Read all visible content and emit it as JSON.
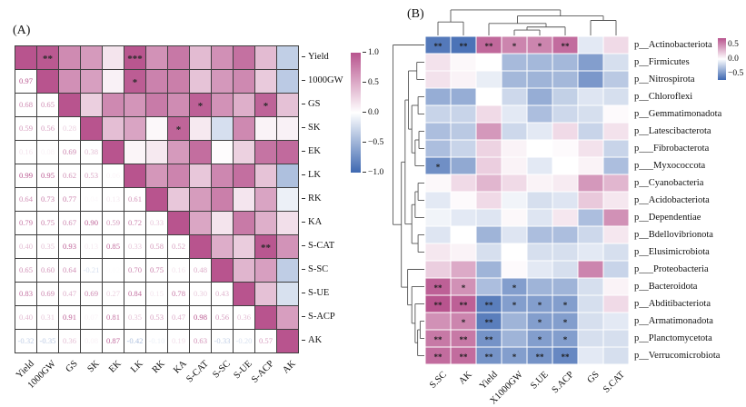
{
  "chart_data": [
    {
      "type": "heatmap",
      "subtype": "correlation-matrix",
      "panel_label": "(A)",
      "labels": [
        "Yield",
        "1000GW",
        "GS",
        "SK",
        "EK",
        "LK",
        "RK",
        "KA",
        "S-CAT",
        "S-SC",
        "S-UE",
        "S-ACP",
        "AK"
      ],
      "lower_triangle": [
        [],
        [
          0.97
        ],
        [
          0.68,
          0.65
        ],
        [
          0.59,
          0.56,
          0.28
        ],
        [
          0.16,
          0.08,
          0.69,
          0.38
        ],
        [
          0.99,
          0.95,
          0.62,
          0.53,
          0.06
        ],
        [
          0.64,
          0.73,
          0.77,
          0.04,
          0.13,
          0.61
        ],
        [
          0.79,
          0.75,
          0.67,
          0.9,
          0.59,
          0.72,
          0.33
        ],
        [
          0.4,
          0.35,
          0.93,
          0.13,
          0.85,
          0.33,
          0.58,
          0.52
        ],
        [
          0.65,
          0.6,
          0.64,
          -0.21,
          0.02,
          0.7,
          0.75,
          0.16,
          0.48
        ],
        [
          0.83,
          0.69,
          0.47,
          0.69,
          0.27,
          0.84,
          0.15,
          0.78,
          0.3,
          0.43
        ],
        [
          0.4,
          0.31,
          0.91,
          0.07,
          0.81,
          0.35,
          0.53,
          0.47,
          0.98,
          0.56,
          0.36
        ],
        [
          -0.32,
          -0.35,
          0.36,
          0.08,
          0.87,
          -0.42,
          -0.1,
          0.19,
          0.63,
          -0.33,
          -0.2,
          0.57
        ]
      ],
      "significance": [
        {
          "pair": [
            "Yield",
            "1000GW"
          ],
          "stars": "**"
        },
        {
          "pair": [
            "Yield",
            "LK"
          ],
          "stars": "***"
        },
        {
          "pair": [
            "1000GW",
            "LK"
          ],
          "stars": "*"
        },
        {
          "pair": [
            "GS",
            "S-CAT"
          ],
          "stars": "*"
        },
        {
          "pair": [
            "GS",
            "S-ACP"
          ],
          "stars": "*"
        },
        {
          "pair": [
            "SK",
            "KA"
          ],
          "stars": "*"
        },
        {
          "pair": [
            "S-CAT",
            "S-ACP"
          ],
          "stars": "**"
        }
      ],
      "colorbar_ticks": [
        "1.0",
        "0.5",
        "0.0",
        "−0.5",
        "−1.0"
      ],
      "colorbar_range": [
        1.0,
        -1.0
      ],
      "colors": {
        "positive": "#b8548e",
        "zero": "#ffffff",
        "negative": "#3e68b1"
      }
    },
    {
      "type": "heatmap",
      "subtype": "clustered-heatmap",
      "panel_label": "(B)",
      "columns": [
        "S.SC",
        "AK",
        "Yield",
        "X1000GW",
        "S.UE",
        "S.ACP",
        "GS",
        "S.CAT"
      ],
      "rows": [
        "p__Actinobacteriota",
        "p__Firmicutes",
        "p__Nitrospirota",
        "p__Chloroflexi",
        "p__Gemmatimonadota",
        "p__Latescibacterota",
        "p___Fibrobacterota",
        "p___Myxococcota",
        "p__Cyanobacteria",
        "p__Acidobacteriota",
        "p__Dependentiae",
        "p__Bdellovibrionota",
        "p__Elusimicrobiota",
        "p___Proteobacteria",
        "p__Bacteroidota",
        "p__Abditibacteriota",
        "p__Armatimonadota",
        "p__Planctomycetota",
        "p__Verrucomicrobiota"
      ],
      "values": [
        [
          -0.62,
          -0.65,
          0.62,
          0.5,
          0.5,
          0.6,
          -0.1,
          0.15
        ],
        [
          0.12,
          0.03,
          0.0,
          -0.32,
          -0.33,
          -0.33,
          -0.45,
          -0.15
        ],
        [
          0.12,
          0.05,
          -0.08,
          -0.33,
          -0.35,
          -0.33,
          -0.48,
          -0.25
        ],
        [
          -0.38,
          -0.38,
          0.0,
          -0.18,
          -0.38,
          -0.22,
          -0.12,
          -0.15
        ],
        [
          -0.2,
          -0.2,
          0.15,
          -0.1,
          -0.3,
          -0.18,
          -0.15,
          0.02
        ],
        [
          -0.3,
          -0.25,
          0.42,
          -0.18,
          -0.1,
          0.15,
          -0.2,
          0.12
        ],
        [
          -0.3,
          -0.2,
          0.18,
          0.05,
          0.0,
          0.02,
          0.12,
          -0.2
        ],
        [
          -0.52,
          -0.4,
          0.2,
          0.05,
          -0.1,
          0.0,
          0.05,
          -0.3
        ],
        [
          0.03,
          0.15,
          0.3,
          0.15,
          0.05,
          0.08,
          0.42,
          0.3
        ],
        [
          -0.1,
          0.02,
          0.15,
          -0.05,
          -0.15,
          -0.12,
          0.22,
          0.1
        ],
        [
          -0.05,
          -0.1,
          -0.12,
          0.03,
          -0.12,
          0.1,
          -0.3,
          0.45
        ],
        [
          -0.12,
          0.0,
          -0.35,
          -0.12,
          -0.3,
          -0.3,
          -0.18,
          0.1
        ],
        [
          0.1,
          0.05,
          -0.15,
          0.0,
          -0.15,
          -0.15,
          -0.1,
          -0.15
        ],
        [
          0.2,
          0.35,
          -0.35,
          0.02,
          -0.1,
          -0.15,
          0.5,
          -0.2
        ],
        [
          0.65,
          0.45,
          -0.3,
          -0.45,
          -0.35,
          -0.35,
          -0.15,
          0.05
        ],
        [
          0.7,
          0.65,
          -0.6,
          -0.45,
          -0.45,
          -0.45,
          -0.15,
          0.15
        ],
        [
          0.45,
          0.5,
          -0.6,
          -0.35,
          -0.45,
          -0.45,
          -0.15,
          -0.1
        ],
        [
          0.55,
          0.55,
          -0.5,
          -0.35,
          -0.45,
          -0.45,
          -0.15,
          -0.15
        ],
        [
          0.6,
          0.6,
          -0.5,
          -0.45,
          -0.5,
          -0.55,
          -0.1,
          -0.15
        ]
      ],
      "stars": [
        [
          "**",
          "**",
          "**",
          "*",
          "*",
          "**",
          "",
          ""
        ],
        [
          "",
          "",
          "",
          "",
          "",
          "",
          "",
          ""
        ],
        [
          "",
          "",
          "",
          "",
          "",
          "",
          "",
          ""
        ],
        [
          "",
          "",
          "",
          "",
          "",
          "",
          "",
          ""
        ],
        [
          "",
          "",
          "",
          "",
          "",
          "",
          "",
          ""
        ],
        [
          "",
          "",
          "",
          "",
          "",
          "",
          "",
          ""
        ],
        [
          "",
          "",
          "",
          "",
          "",
          "",
          "",
          ""
        ],
        [
          "*",
          "",
          "",
          "",
          "",
          "",
          "",
          ""
        ],
        [
          "",
          "",
          "",
          "",
          "",
          "",
          "",
          ""
        ],
        [
          "",
          "",
          "",
          "",
          "",
          "",
          "",
          ""
        ],
        [
          "",
          "",
          "",
          "",
          "",
          "",
          "",
          ""
        ],
        [
          "",
          "",
          "",
          "",
          "",
          "",
          "",
          ""
        ],
        [
          "",
          "",
          "",
          "",
          "",
          "",
          "",
          ""
        ],
        [
          "",
          "",
          "",
          "",
          "",
          "",
          "",
          ""
        ],
        [
          "**",
          "*",
          "",
          "*",
          "",
          "",
          "",
          ""
        ],
        [
          "**",
          "**",
          "**",
          "*",
          "*",
          "*",
          "",
          ""
        ],
        [
          "",
          "*",
          "**",
          "",
          "*",
          "*",
          "",
          ""
        ],
        [
          "**",
          "**",
          "**",
          "",
          "*",
          "*",
          "",
          ""
        ],
        [
          "**",
          "**",
          "**",
          "*",
          "**",
          "**",
          "",
          ""
        ]
      ],
      "colorbar_ticks": [
        "0.5",
        "0.0",
        "−0.5"
      ],
      "colorbar_range": [
        0.7,
        -0.7
      ],
      "col_dendrogram": {
        "h": 0.85,
        "c": [
          {
            "h": 0.45,
            "c": [
              0,
              1
            ]
          },
          {
            "h": 0.65,
            "c": [
              {
                "h": 0.4,
                "c": [
                  2,
                  {
                    "h": 0.28,
                    "c": [
                      {
                        "h": 0.18,
                        "c": [
                          3,
                          4
                        ]
                      },
                      5
                    ]
                  }
                ]
              },
              {
                "h": 0.5,
                "c": [
                  6,
                  7
                ]
              }
            ]
          }
        ]
      },
      "row_dendrogram": {
        "h": 0.75,
        "c": [
          0,
          {
            "h": 0.55,
            "c": [
              {
                "h": 0.46,
                "c": [
                  {
                    "h": 0.38,
                    "c": [
                      {
                        "h": 0.18,
                        "c": [
                          1,
                          2
                        ]
                      },
                      {
                        "h": 0.3,
                        "c": [
                          {
                            "h": 0.15,
                            "c": [
                              3,
                              4
                            ]
                          },
                          {
                            "h": 0.22,
                            "c": [
                              {
                                "h": 0.13,
                                "c": [
                                  5,
                                  6
                                ]
                              },
                              7
                            ]
                          }
                        ]
                      }
                    ]
                  },
                  {
                    "h": 0.3,
                    "c": [
                      {
                        "h": 0.22,
                        "c": [
                          {
                            "h": 0.15,
                            "c": [
                              8,
                              9
                            ]
                          },
                          10
                        ]
                      },
                      {
                        "h": 0.15,
                        "c": [
                          11,
                          12
                        ]
                      }
                    ]
                  }
                ]
              },
              {
                "h": 0.4,
                "c": [
                  13,
                  {
                    "h": 0.3,
                    "c": [
                      14,
                      {
                        "h": 0.22,
                        "c": [
                          15,
                          {
                            "h": 0.16,
                            "c": [
                              {
                                "h": 0.1,
                                "c": [
                                  16,
                                  17
                                ]
                              },
                              18
                            ]
                          }
                        ]
                      }
                    ]
                  }
                ]
              }
            ]
          }
        ]
      }
    }
  ]
}
